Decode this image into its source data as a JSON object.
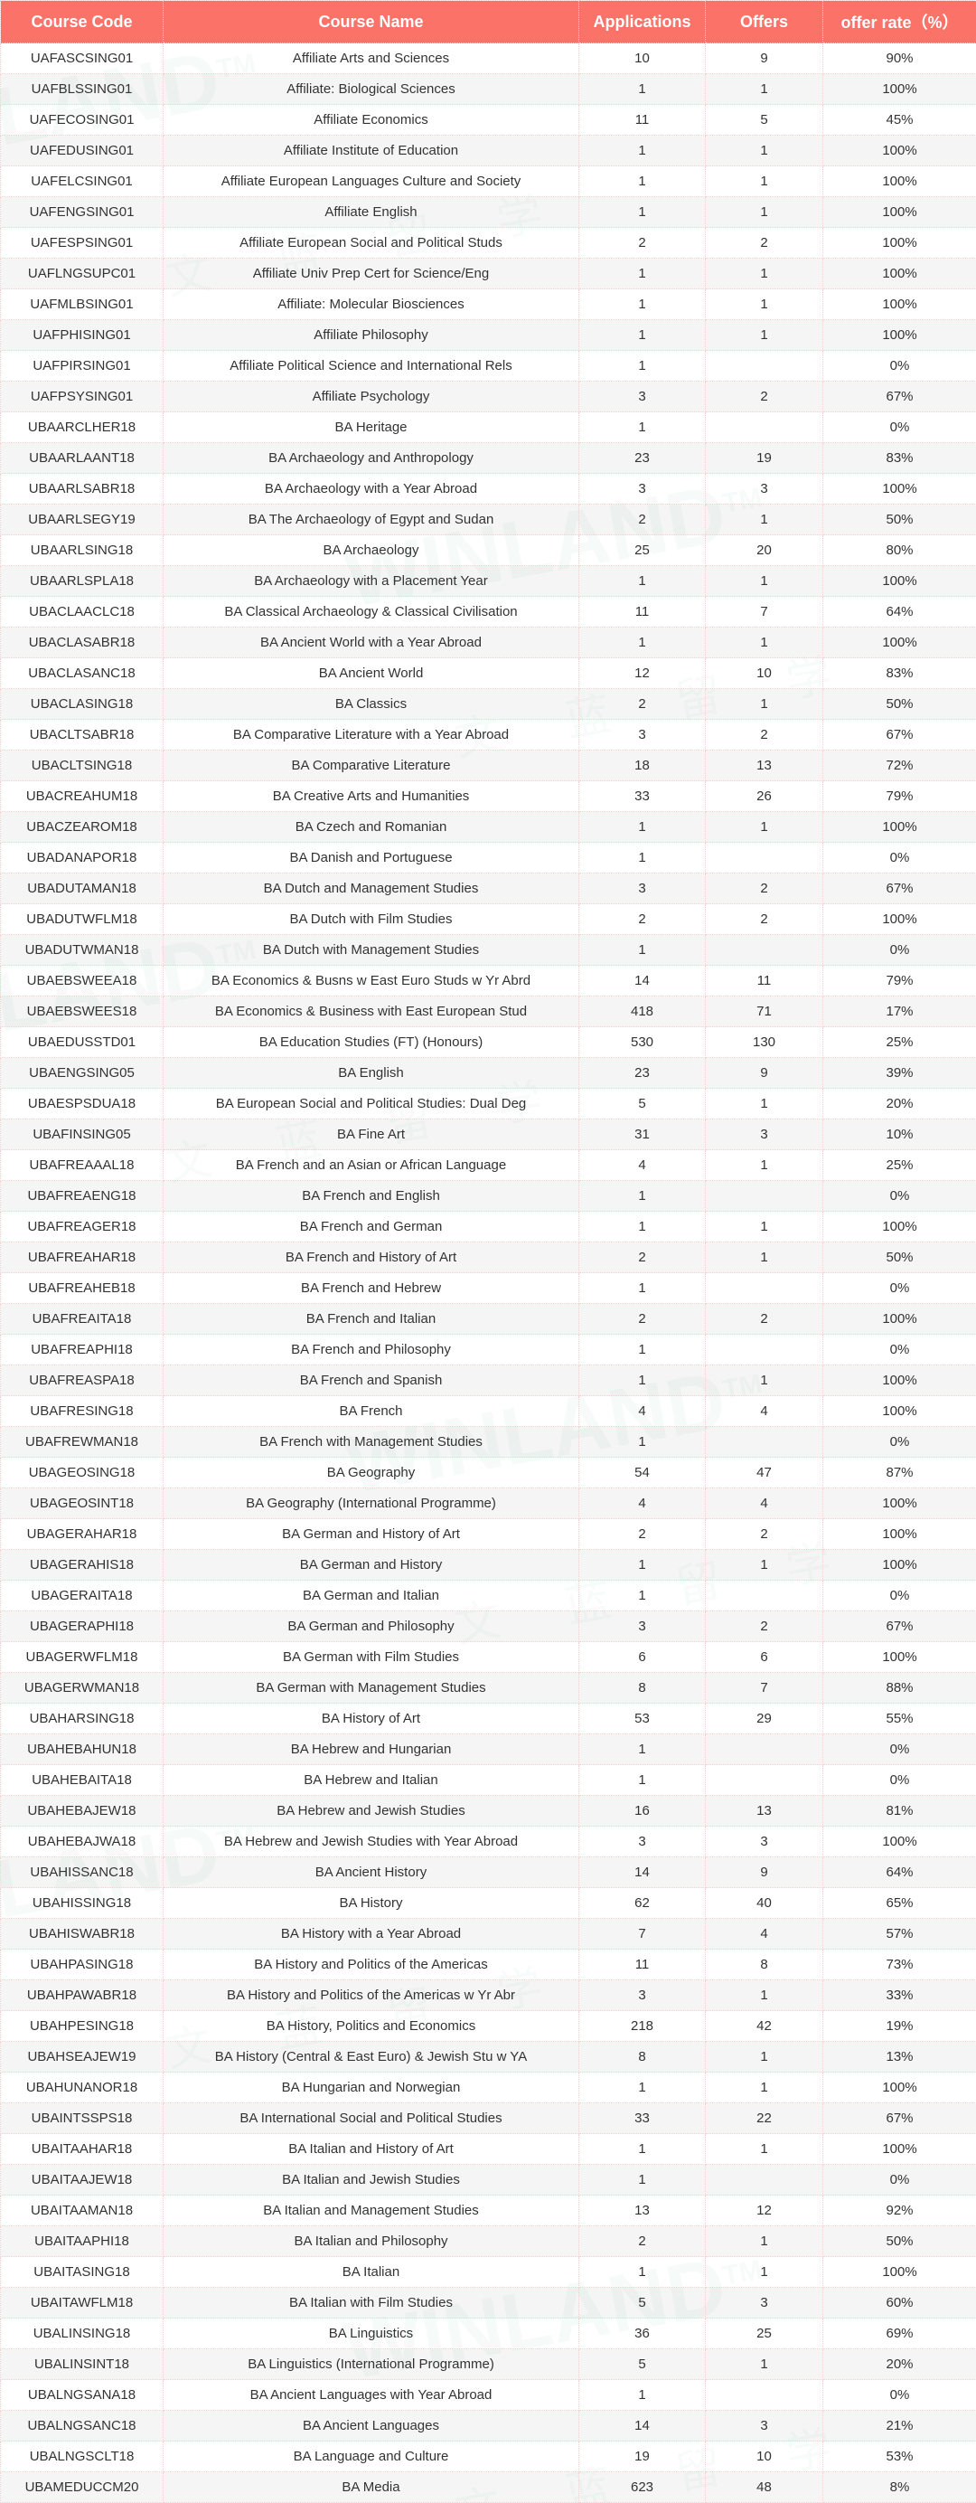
{
  "table": {
    "headers": {
      "code": "Course Code",
      "name": "Course Name",
      "applications": "Applications",
      "offers": "Offers",
      "rate": "offer rate（%）"
    },
    "header_bg": "#fa7268",
    "header_color": "#ffffff",
    "row_odd_bg": "#ffffff",
    "row_even_bg": "#eeeeee",
    "border_color": "#ffcccc",
    "text_color": "#333333",
    "rows": [
      {
        "code": "UAFASCSING01",
        "name": "Affiliate Arts and Sciences",
        "app": "10",
        "off": "9",
        "rate": "90%"
      },
      {
        "code": "UAFBLSSING01",
        "name": "Affiliate: Biological Sciences",
        "app": "1",
        "off": "1",
        "rate": "100%"
      },
      {
        "code": "UAFECOSING01",
        "name": "Affiliate Economics",
        "app": "11",
        "off": "5",
        "rate": "45%"
      },
      {
        "code": "UAFEDUSING01",
        "name": "Affiliate Institute of Education",
        "app": "1",
        "off": "1",
        "rate": "100%"
      },
      {
        "code": "UAFELCSING01",
        "name": "Affiliate European Languages Culture and Society",
        "app": "1",
        "off": "1",
        "rate": "100%"
      },
      {
        "code": "UAFENGSING01",
        "name": "Affiliate English",
        "app": "1",
        "off": "1",
        "rate": "100%"
      },
      {
        "code": "UAFESPSING01",
        "name": "Affiliate European Social and Political Studs",
        "app": "2",
        "off": "2",
        "rate": "100%"
      },
      {
        "code": "UAFLNGSUPC01",
        "name": "Affiliate Univ Prep Cert for Science/Eng",
        "app": "1",
        "off": "1",
        "rate": "100%"
      },
      {
        "code": "UAFMLBSING01",
        "name": "Affiliate: Molecular Biosciences",
        "app": "1",
        "off": "1",
        "rate": "100%"
      },
      {
        "code": "UAFPHISING01",
        "name": "Affiliate Philosophy",
        "app": "1",
        "off": "1",
        "rate": "100%"
      },
      {
        "code": "UAFPIRSING01",
        "name": "Affiliate Political Science and International Rels",
        "app": "1",
        "off": "",
        "rate": "0%"
      },
      {
        "code": "UAFPSYSING01",
        "name": "Affiliate Psychology",
        "app": "3",
        "off": "2",
        "rate": "67%"
      },
      {
        "code": "UBAARCLHER18",
        "name": "BA Heritage",
        "app": "1",
        "off": "",
        "rate": "0%"
      },
      {
        "code": "UBAARLAANT18",
        "name": "BA Archaeology and Anthropology",
        "app": "23",
        "off": "19",
        "rate": "83%"
      },
      {
        "code": "UBAARLSABR18",
        "name": "BA Archaeology with a Year Abroad",
        "app": "3",
        "off": "3",
        "rate": "100%"
      },
      {
        "code": "UBAARLSEGY19",
        "name": "BA The Archaeology of Egypt and Sudan",
        "app": "2",
        "off": "1",
        "rate": "50%"
      },
      {
        "code": "UBAARLSING18",
        "name": "BA Archaeology",
        "app": "25",
        "off": "20",
        "rate": "80%"
      },
      {
        "code": "UBAARLSPLA18",
        "name": "BA Archaeology with a Placement Year",
        "app": "1",
        "off": "1",
        "rate": "100%"
      },
      {
        "code": "UBACLAACLC18",
        "name": "BA Classical Archaeology & Classical Civilisation",
        "app": "11",
        "off": "7",
        "rate": "64%"
      },
      {
        "code": "UBACLASABR18",
        "name": "BA Ancient World with a Year Abroad",
        "app": "1",
        "off": "1",
        "rate": "100%"
      },
      {
        "code": "UBACLASANC18",
        "name": "BA Ancient World",
        "app": "12",
        "off": "10",
        "rate": "83%"
      },
      {
        "code": "UBACLASING18",
        "name": "BA Classics",
        "app": "2",
        "off": "1",
        "rate": "50%"
      },
      {
        "code": "UBACLTSABR18",
        "name": "BA Comparative Literature with a Year Abroad",
        "app": "3",
        "off": "2",
        "rate": "67%"
      },
      {
        "code": "UBACLTSING18",
        "name": "BA Comparative Literature",
        "app": "18",
        "off": "13",
        "rate": "72%"
      },
      {
        "code": "UBACREAHUM18",
        "name": "BA Creative Arts and Humanities",
        "app": "33",
        "off": "26",
        "rate": "79%"
      },
      {
        "code": "UBACZEAROM18",
        "name": "BA Czech and Romanian",
        "app": "1",
        "off": "1",
        "rate": "100%"
      },
      {
        "code": "UBADANAPOR18",
        "name": "BA Danish and Portuguese",
        "app": "1",
        "off": "",
        "rate": "0%"
      },
      {
        "code": "UBADUTAMAN18",
        "name": "BA Dutch and Management Studies",
        "app": "3",
        "off": "2",
        "rate": "67%"
      },
      {
        "code": "UBADUTWFLM18",
        "name": "BA Dutch with Film Studies",
        "app": "2",
        "off": "2",
        "rate": "100%"
      },
      {
        "code": "UBADUTWMAN18",
        "name": "BA Dutch with Management Studies",
        "app": "1",
        "off": "",
        "rate": "0%"
      },
      {
        "code": "UBAEBSWEEA18",
        "name": "BA Economics & Busns w East Euro Studs w Yr Abrd",
        "app": "14",
        "off": "11",
        "rate": "79%"
      },
      {
        "code": "UBAEBSWEES18",
        "name": "BA Economics & Business with East European Stud",
        "app": "418",
        "off": "71",
        "rate": "17%"
      },
      {
        "code": "UBAEDUSSTD01",
        "name": "BA Education Studies (FT) (Honours)",
        "app": "530",
        "off": "130",
        "rate": "25%"
      },
      {
        "code": "UBAENGSING05",
        "name": "BA English",
        "app": "23",
        "off": "9",
        "rate": "39%"
      },
      {
        "code": "UBAESPSDUA18",
        "name": "BA European Social and Political Studies: Dual Deg",
        "app": "5",
        "off": "1",
        "rate": "20%"
      },
      {
        "code": "UBAFINSING05",
        "name": "BA Fine Art",
        "app": "31",
        "off": "3",
        "rate": "10%"
      },
      {
        "code": "UBAFREAAAL18",
        "name": "BA French and an Asian or African Language",
        "app": "4",
        "off": "1",
        "rate": "25%"
      },
      {
        "code": "UBAFREAENG18",
        "name": "BA French and English",
        "app": "1",
        "off": "",
        "rate": "0%"
      },
      {
        "code": "UBAFREAGER18",
        "name": "BA French and German",
        "app": "1",
        "off": "1",
        "rate": "100%"
      },
      {
        "code": "UBAFREAHAR18",
        "name": "BA French and History of Art",
        "app": "2",
        "off": "1",
        "rate": "50%"
      },
      {
        "code": "UBAFREAHEB18",
        "name": "BA French and Hebrew",
        "app": "1",
        "off": "",
        "rate": "0%"
      },
      {
        "code": "UBAFREAITA18",
        "name": "BA French and Italian",
        "app": "2",
        "off": "2",
        "rate": "100%"
      },
      {
        "code": "UBAFREAPHI18",
        "name": "BA French and Philosophy",
        "app": "1",
        "off": "",
        "rate": "0%"
      },
      {
        "code": "UBAFREASPA18",
        "name": "BA French and Spanish",
        "app": "1",
        "off": "1",
        "rate": "100%"
      },
      {
        "code": "UBAFRESING18",
        "name": "BA French",
        "app": "4",
        "off": "4",
        "rate": "100%"
      },
      {
        "code": "UBAFREWMAN18",
        "name": "BA French with Management Studies",
        "app": "1",
        "off": "",
        "rate": "0%"
      },
      {
        "code": "UBAGEOSING18",
        "name": "BA Geography",
        "app": "54",
        "off": "47",
        "rate": "87%"
      },
      {
        "code": "UBAGEOSINT18",
        "name": "BA Geography (International Programme)",
        "app": "4",
        "off": "4",
        "rate": "100%"
      },
      {
        "code": "UBAGERAHAR18",
        "name": "BA German and History of Art",
        "app": "2",
        "off": "2",
        "rate": "100%"
      },
      {
        "code": "UBAGERAHIS18",
        "name": "BA German and History",
        "app": "1",
        "off": "1",
        "rate": "100%"
      },
      {
        "code": "UBAGERAITA18",
        "name": "BA German and Italian",
        "app": "1",
        "off": "",
        "rate": "0%"
      },
      {
        "code": "UBAGERAPHI18",
        "name": "BA German and Philosophy",
        "app": "3",
        "off": "2",
        "rate": "67%"
      },
      {
        "code": "UBAGERWFLM18",
        "name": "BA German with Film Studies",
        "app": "6",
        "off": "6",
        "rate": "100%"
      },
      {
        "code": "UBAGERWMAN18",
        "name": "BA German with Management Studies",
        "app": "8",
        "off": "7",
        "rate": "88%"
      },
      {
        "code": "UBAHARSING18",
        "name": "BA History of Art",
        "app": "53",
        "off": "29",
        "rate": "55%"
      },
      {
        "code": "UBAHEBAHUN18",
        "name": "BA Hebrew and Hungarian",
        "app": "1",
        "off": "",
        "rate": "0%"
      },
      {
        "code": "UBAHEBAITA18",
        "name": "BA Hebrew and Italian",
        "app": "1",
        "off": "",
        "rate": "0%"
      },
      {
        "code": "UBAHEBAJEW18",
        "name": "BA Hebrew and Jewish Studies",
        "app": "16",
        "off": "13",
        "rate": "81%"
      },
      {
        "code": "UBAHEBAJWA18",
        "name": "BA Hebrew and Jewish Studies with Year Abroad",
        "app": "3",
        "off": "3",
        "rate": "100%"
      },
      {
        "code": "UBAHISSANC18",
        "name": "BA Ancient History",
        "app": "14",
        "off": "9",
        "rate": "64%"
      },
      {
        "code": "UBAHISSING18",
        "name": "BA History",
        "app": "62",
        "off": "40",
        "rate": "65%"
      },
      {
        "code": "UBAHISWABR18",
        "name": "BA History with a Year Abroad",
        "app": "7",
        "off": "4",
        "rate": "57%"
      },
      {
        "code": "UBAHPASING18",
        "name": "BA History and Politics of the Americas",
        "app": "11",
        "off": "8",
        "rate": "73%"
      },
      {
        "code": "UBAHPAWABR18",
        "name": "BA History and Politics of the Americas w Yr Abr",
        "app": "3",
        "off": "1",
        "rate": "33%"
      },
      {
        "code": "UBAHPESING18",
        "name": "BA History, Politics and Economics",
        "app": "218",
        "off": "42",
        "rate": "19%"
      },
      {
        "code": "UBAHSEAJEW19",
        "name": "BA History (Central & East Euro) & Jewish Stu w YA",
        "app": "8",
        "off": "1",
        "rate": "13%"
      },
      {
        "code": "UBAHUNANOR18",
        "name": "BA Hungarian and Norwegian",
        "app": "1",
        "off": "1",
        "rate": "100%"
      },
      {
        "code": "UBAINTSSPS18",
        "name": "BA International Social and Political Studies",
        "app": "33",
        "off": "22",
        "rate": "67%"
      },
      {
        "code": "UBAITAAHAR18",
        "name": "BA Italian and History of Art",
        "app": "1",
        "off": "1",
        "rate": "100%"
      },
      {
        "code": "UBAITAAJEW18",
        "name": "BA Italian and Jewish Studies",
        "app": "1",
        "off": "",
        "rate": "0%"
      },
      {
        "code": "UBAITAAMAN18",
        "name": "BA Italian and Management Studies",
        "app": "13",
        "off": "12",
        "rate": "92%"
      },
      {
        "code": "UBAITAAPHI18",
        "name": "BA Italian and Philosophy",
        "app": "2",
        "off": "1",
        "rate": "50%"
      },
      {
        "code": "UBAITASING18",
        "name": "BA Italian",
        "app": "1",
        "off": "1",
        "rate": "100%"
      },
      {
        "code": "UBAITAWFLM18",
        "name": "BA Italian with Film Studies",
        "app": "5",
        "off": "3",
        "rate": "60%"
      },
      {
        "code": "UBALINSING18",
        "name": "BA Linguistics",
        "app": "36",
        "off": "25",
        "rate": "69%"
      },
      {
        "code": "UBALINSINT18",
        "name": "BA Linguistics (International Programme)",
        "app": "5",
        "off": "1",
        "rate": "20%"
      },
      {
        "code": "UBALNGSANA18",
        "name": "BA Ancient Languages with Year Abroad",
        "app": "1",
        "off": "",
        "rate": "0%"
      },
      {
        "code": "UBALNGSANC18",
        "name": "BA Ancient Languages",
        "app": "14",
        "off": "3",
        "rate": "21%"
      },
      {
        "code": "UBALNGSCLT18",
        "name": "BA Language and Culture",
        "app": "19",
        "off": "10",
        "rate": "53%"
      },
      {
        "code": "UBAMEDUCCM20",
        "name": "BA Media",
        "app": "623",
        "off": "48",
        "rate": "8%"
      }
    ]
  },
  "watermark": {
    "text_en": "WINLAND",
    "tm": "TM",
    "text_cn": "文 蓝 留 学",
    "color": "rgba(100,180,150,0.15)"
  }
}
